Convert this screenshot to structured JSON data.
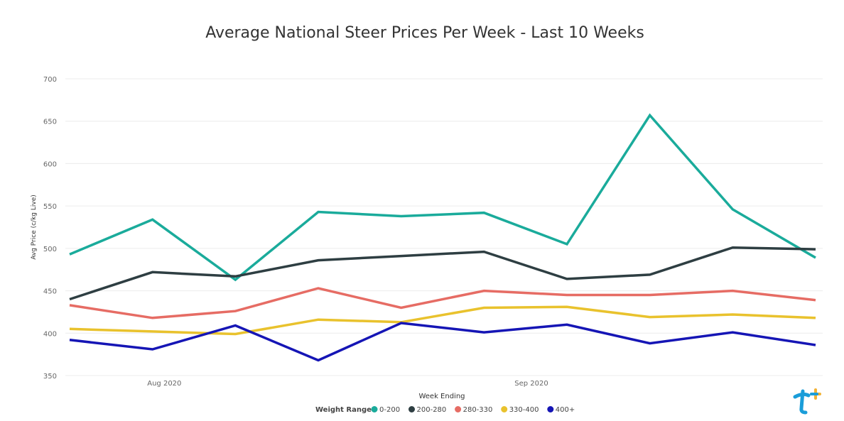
{
  "chart_data": {
    "type": "line",
    "title": "Average National Steer Prices Per Week - Last 10 Weeks",
    "xlabel": "Week Ending",
    "ylabel": "Avg Price (c/kg Live)",
    "ylim": [
      350,
      700
    ],
    "yticks": [
      "350",
      "400",
      "450",
      "500",
      "550",
      "600",
      "650",
      "700"
    ],
    "x": [
      "2020-07-24",
      "2020-07-31",
      "2020-08-07",
      "2020-08-14",
      "2020-08-21",
      "2020-08-28",
      "2020-09-04",
      "2020-09-11",
      "2020-09-18",
      "2020-09-25"
    ],
    "xtick_labels": [
      {
        "label": "Aug 2020",
        "date": "2020-08-01"
      },
      {
        "label": "Sep 2020",
        "date": "2020-09-01"
      }
    ],
    "grid": true,
    "legend": {
      "title": "Weight Range",
      "position": "bottom"
    },
    "series": [
      {
        "name": "0-200",
        "color": "#1AAB9B",
        "values": [
          493,
          534,
          463,
          543,
          538,
          542,
          505,
          657,
          546,
          489
        ]
      },
      {
        "name": "200-280",
        "color": "#2E3E42",
        "values": [
          440,
          472,
          467,
          486,
          491,
          496,
          464,
          469,
          501,
          499
        ]
      },
      {
        "name": "280-330",
        "color": "#E66C64",
        "values": [
          433,
          418,
          426,
          453,
          430,
          450,
          445,
          445,
          450,
          439
        ]
      },
      {
        "name": "330-400",
        "color": "#E9C22D",
        "values": [
          405,
          402,
          399,
          416,
          413,
          430,
          431,
          419,
          422,
          418
        ]
      },
      {
        "name": "400+",
        "color": "#1515B5",
        "values": [
          392,
          381,
          409,
          368,
          412,
          401,
          410,
          388,
          401,
          386
        ]
      }
    ]
  },
  "logo": {
    "name": "brand-logo",
    "colors": [
      "#1A9DD9",
      "#F2B233"
    ]
  }
}
